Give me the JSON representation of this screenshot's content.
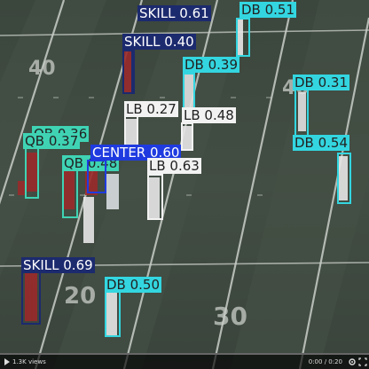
{
  "detections": [
    {
      "class": "skill",
      "text": "SKILL 0.61"
    },
    {
      "class": "db",
      "text": "DB 0.51"
    },
    {
      "class": "skill",
      "text": "SKILL 0.40"
    },
    {
      "class": "db",
      "text": "DB 0.39"
    },
    {
      "class": "db",
      "text": "DB 0.31"
    },
    {
      "class": "lb",
      "text": "LB 0.27"
    },
    {
      "class": "lb",
      "text": "LB 0.48"
    },
    {
      "class": "qb",
      "text": "QB 0.36"
    },
    {
      "class": "qb",
      "text": "QB 0.37"
    },
    {
      "class": "center",
      "text": "CENTER 0.60"
    },
    {
      "class": "qb",
      "text": "QB 0.48"
    },
    {
      "class": "lb",
      "text": "LB 0.63"
    },
    {
      "class": "db",
      "text": "DB 0.54"
    },
    {
      "class": "skill",
      "text": "SKILL 0.69"
    },
    {
      "class": "db",
      "text": "DB 0.50"
    }
  ],
  "yard_numbers": [
    "40",
    "40",
    "20",
    "30"
  ],
  "player": {
    "views": "1.3K views",
    "time": "0:00 / 0:20",
    "progress": 0.0
  },
  "colors": {
    "skill": "#1c2a6e",
    "db": "#33d6e0",
    "lb": "#f2f2f2",
    "qb": "#3fd3b4",
    "center": "#1f3be0",
    "field": "#3c4a3e"
  },
  "icons": [
    "play-icon",
    "settings-icon",
    "fullscreen-icon"
  ]
}
